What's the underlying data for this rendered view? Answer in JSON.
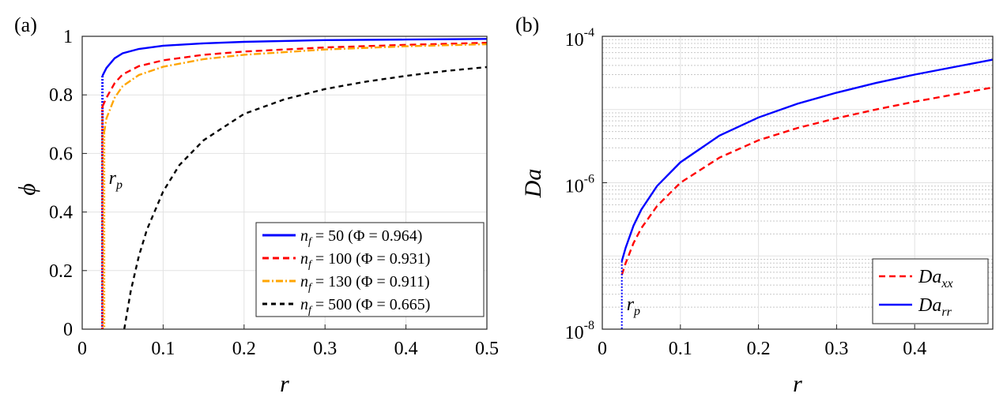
{
  "chart_data": [
    {
      "panel_label": "(a)",
      "type": "line",
      "xlabel": "r",
      "ylabel": "ϕ",
      "xlim": [
        0,
        0.5
      ],
      "ylim": [
        0,
        1
      ],
      "x_ticks": [
        "0",
        "0.1",
        "0.2",
        "0.3",
        "0.4",
        "0.5"
      ],
      "y_ticks": [
        "0",
        "0.2",
        "0.4",
        "0.6",
        "0.8",
        "1"
      ],
      "grid": true,
      "legend_position": "bottom-right",
      "annotation": {
        "text": "r",
        "subscript": "p",
        "x": 0.025,
        "y": 0.55
      },
      "series": [
        {
          "name_var": "n",
          "name_sub": "f",
          "name_rest": " = 50   (Φ = 0.964)",
          "color": "#0000ff",
          "dash": "solid",
          "rp_line_color": "#0000ff",
          "x": [
            0.025,
            0.03,
            0.04,
            0.05,
            0.07,
            0.1,
            0.15,
            0.2,
            0.3,
            0.4,
            0.5
          ],
          "y": [
            0.865,
            0.892,
            0.925,
            0.942,
            0.957,
            0.968,
            0.976,
            0.981,
            0.987,
            0.989,
            0.991
          ]
        },
        {
          "name_var": "n",
          "name_sub": "f",
          "name_rest": " = 100 (Φ = 0.931)",
          "color": "#ff0000",
          "dash": "8,5",
          "rp_line_color": "#ff0000",
          "x": [
            0.025,
            0.03,
            0.04,
            0.05,
            0.07,
            0.1,
            0.15,
            0.2,
            0.3,
            0.4,
            0.5
          ],
          "y": [
            0.76,
            0.79,
            0.84,
            0.87,
            0.898,
            0.918,
            0.937,
            0.948,
            0.962,
            0.971,
            0.978
          ]
        },
        {
          "name_var": "n",
          "name_sub": "f",
          "name_rest": " = 130 (Φ = 0.911)",
          "color": "#ffa500",
          "dash": "9,3,2,3",
          "rp_line_color": "#ffa500",
          "x": [
            0.027,
            0.03,
            0.04,
            0.05,
            0.07,
            0.1,
            0.15,
            0.2,
            0.3,
            0.4,
            0.5
          ],
          "y": [
            0.67,
            0.72,
            0.79,
            0.83,
            0.868,
            0.896,
            0.922,
            0.937,
            0.955,
            0.966,
            0.973
          ]
        },
        {
          "name_var": "n",
          "name_sub": "f",
          "name_rest": " = 500 (Φ = 0.665)",
          "color": "#000000",
          "dash": "6,5",
          "rp_line_color": "#000000",
          "x": [
            0.052,
            0.06,
            0.07,
            0.08,
            0.1,
            0.12,
            0.15,
            0.2,
            0.25,
            0.3,
            0.35,
            0.4,
            0.45,
            0.5
          ],
          "y": [
            0.0,
            0.13,
            0.25,
            0.34,
            0.47,
            0.56,
            0.645,
            0.735,
            0.785,
            0.82,
            0.845,
            0.865,
            0.882,
            0.895
          ]
        }
      ]
    },
    {
      "panel_label": "(b)",
      "type": "line",
      "xlabel": "r",
      "ylabel": "Da",
      "xlim": [
        0,
        0.5
      ],
      "ylim": [
        1e-08,
        0.0001
      ],
      "y_scale": "log",
      "x_ticks": [
        "0",
        "0.1",
        "0.2",
        "0.3",
        "0.4"
      ],
      "y_ticks": [
        {
          "base": "10",
          "exp": "-8"
        },
        {
          "base": "10",
          "exp": "-6"
        },
        {
          "base": "10",
          "exp": "-4"
        }
      ],
      "grid": true,
      "legend_position": "bottom-right",
      "annotation": {
        "text": "r",
        "subscript": "p",
        "x": 0.025,
        "y": 2.2e-08
      },
      "series": [
        {
          "name_var": "Da",
          "name_sub": "xx",
          "color": "#ff0000",
          "dash": "8,5",
          "x": [
            0.025,
            0.03,
            0.04,
            0.05,
            0.07,
            0.1,
            0.15,
            0.2,
            0.25,
            0.3,
            0.35,
            0.4,
            0.45,
            0.5
          ],
          "y": [
            5.5e-08,
            8e-08,
            1.5e-07,
            2.4e-07,
            4.8e-07,
            1e-06,
            2.2e-06,
            3.8e-06,
            5.6e-06,
            7.6e-06,
            1e-05,
            1.28e-05,
            1.6e-05,
            2e-05
          ]
        },
        {
          "name_var": "Da",
          "name_sub": "rr",
          "color": "#0000ff",
          "dash": "solid",
          "x": [
            0.025,
            0.03,
            0.04,
            0.05,
            0.07,
            0.1,
            0.15,
            0.2,
            0.25,
            0.3,
            0.35,
            0.4,
            0.45,
            0.5
          ],
          "y": [
            8.5e-08,
            1.3e-07,
            2.6e-07,
            4.3e-07,
            9e-07,
            1.9e-06,
            4.4e-06,
            7.8e-06,
            1.2e-05,
            1.7e-05,
            2.3e-05,
            3e-05,
            3.8e-05,
            4.8e-05
          ]
        }
      ]
    }
  ]
}
